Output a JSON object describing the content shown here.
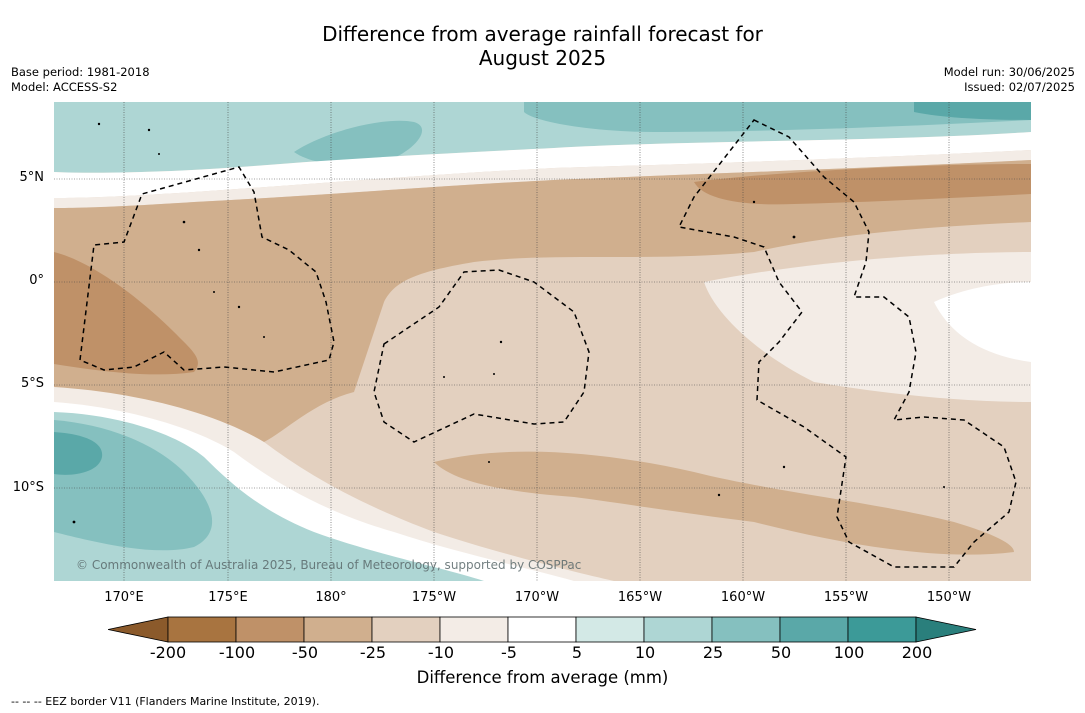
{
  "header": {
    "title_line1": "Difference from average rainfall forecast for",
    "title_line2": "August 2025",
    "base_period": "Base period: 1981-2018",
    "model": "Model: ACCESS-S2",
    "model_run": "Model run: 30/06/2025",
    "issued": "Issued: 02/07/2025"
  },
  "map": {
    "latitude_labels": [
      "5°N",
      "0°",
      "5°S",
      "10°S"
    ],
    "longitude_labels": [
      "170°E",
      "175°E",
      "180°",
      "175°W",
      "170°W",
      "165°W",
      "160°W",
      "155°W",
      "150°W"
    ],
    "credit": "© Commonwealth of Australia 2025, Bureau of Meteorology, supported by COSPPac"
  },
  "legend": {
    "label": "Difference from average (mm)",
    "ticks": [
      "-200",
      "-100",
      "-50",
      "-25",
      "-10",
      "-5",
      "5",
      "10",
      "25",
      "50",
      "100",
      "200"
    ],
    "colors": [
      "#8b5a2b",
      "#a87440",
      "#bf9168",
      "#d0af8e",
      "#e3d0bf",
      "#f3ece6",
      "#ffffff",
      "#d3e9e6",
      "#aed6d4",
      "#85c0bf",
      "#5aa8a8",
      "#3c9a98",
      "#2a7f7c"
    ]
  },
  "footnote": "--  --  -- EEZ border V11 (Flanders Marine Institute, 2019)."
}
